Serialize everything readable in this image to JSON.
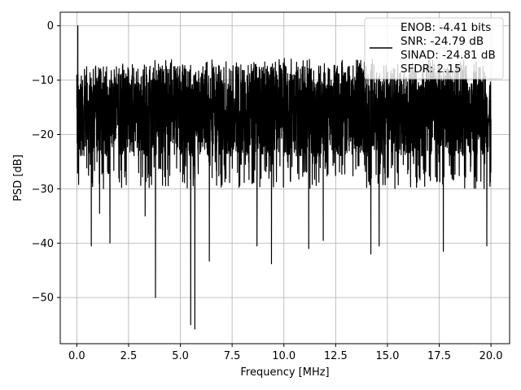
{
  "chart_data": {
    "type": "line",
    "title": "",
    "xlabel": "Frequency [MHz]",
    "ylabel": "PSD [dB]",
    "xlim": [
      -0.8,
      20.9
    ],
    "ylim": [
      -58.5,
      2.5
    ],
    "xticks": [
      0.0,
      2.5,
      5.0,
      7.5,
      10.0,
      12.5,
      15.0,
      17.5,
      20.0
    ],
    "xtick_labels": [
      "0.0",
      "2.5",
      "5.0",
      "7.5",
      "10.0",
      "12.5",
      "15.0",
      "17.5",
      "20.0"
    ],
    "yticks": [
      0,
      -10,
      -20,
      -30,
      -40,
      -50
    ],
    "ytick_labels": [
      "0",
      "−10",
      "−20",
      "−30",
      "−40",
      "−50"
    ],
    "grid": true,
    "legend_position": "top-right",
    "series": [
      {
        "name": "ENOB: -4.41 bits\nSNR: -24.79 dB\nSINAD: -24.81 dB\nSFDR: 2.15",
        "color": "#000000",
        "x_range": [
          0,
          20
        ],
        "envelope": {
          "noise_floor_mean": -17,
          "noise_floor_upper": -7,
          "noise_floor_lower": -30,
          "peak": {
            "x": 0.05,
            "y": 0
          }
        },
        "notable_dips": [
          {
            "x": 0.7,
            "y": -40.5
          },
          {
            "x": 1.1,
            "y": -34.5
          },
          {
            "x": 1.6,
            "y": -40.0
          },
          {
            "x": 3.3,
            "y": -35.0
          },
          {
            "x": 3.8,
            "y": -50.0
          },
          {
            "x": 5.5,
            "y": -55.0
          },
          {
            "x": 5.7,
            "y": -55.8
          },
          {
            "x": 6.4,
            "y": -43.3
          },
          {
            "x": 8.7,
            "y": -40.5
          },
          {
            "x": 9.4,
            "y": -43.8
          },
          {
            "x": 11.2,
            "y": -41.0
          },
          {
            "x": 11.9,
            "y": -39.5
          },
          {
            "x": 14.2,
            "y": -42.0
          },
          {
            "x": 14.6,
            "y": -40.5
          },
          {
            "x": 17.7,
            "y": -41.5
          },
          {
            "x": 19.8,
            "y": -40.5
          }
        ]
      }
    ]
  },
  "legend": {
    "lines": [
      "ENOB: -4.41 bits",
      "SNR: -24.79 dB",
      "SINAD: -24.81 dB",
      "SFDR: 2.15"
    ]
  }
}
